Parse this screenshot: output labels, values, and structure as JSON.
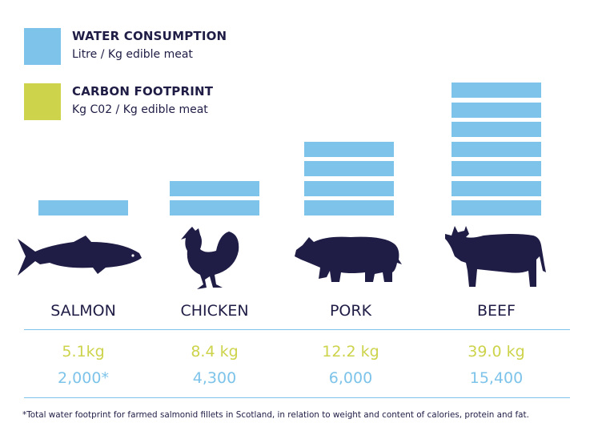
{
  "legend": {
    "water": {
      "title": "WATER CONSUMPTION",
      "unit": "Litre / Kg edible meat",
      "color": "#7dc3ea"
    },
    "carbon": {
      "title": "CARBON FOOTPRINT",
      "unit": "Kg C02 / Kg edible meat",
      "color": "#cdd34a"
    }
  },
  "chart_data": {
    "type": "bar",
    "categories": [
      "SALMON",
      "CHICKEN",
      "PORK",
      "BEEF"
    ],
    "series": [
      {
        "name": "Water consumption (Litre / Kg edible meat)",
        "values": [
          2000,
          4300,
          6000,
          15400
        ],
        "labels": [
          "2,000*",
          "4,300",
          "6,000",
          "15,400"
        ],
        "blocks": [
          1,
          2,
          4,
          7
        ]
      },
      {
        "name": "Carbon footprint (Kg C02 / Kg edible meat)",
        "values": [
          5.1,
          8.4,
          12.2,
          39.0
        ],
        "labels": [
          "5.1kg",
          "8.4 kg",
          "12.2 kg",
          "39.0 kg"
        ]
      }
    ],
    "footnote": "*Total water footprint for farmed salmonid fillets in Scotland, in relation to weight and content of calories, protein and fat."
  }
}
